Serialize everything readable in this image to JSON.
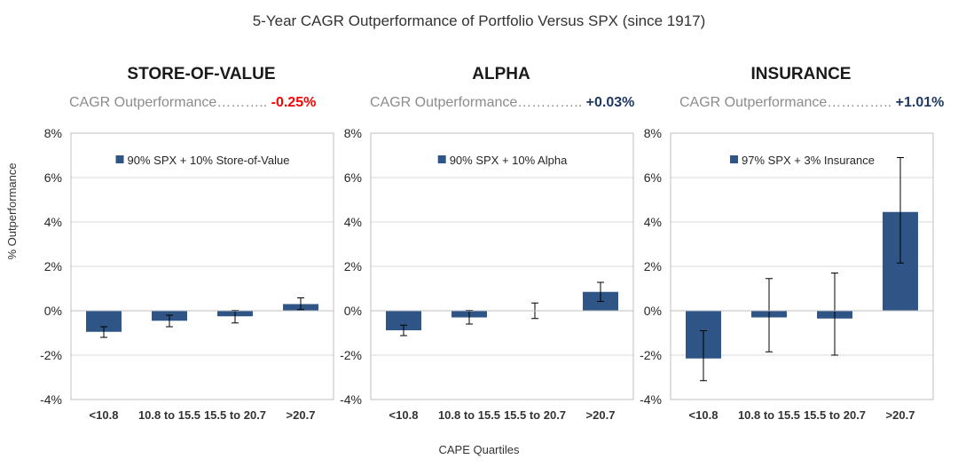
{
  "main_title": "5-Year CAGR Outperformance of Portfolio Versus SPX (since 1917)",
  "y_axis_label": "% Outperformance",
  "x_axis_label": "CAPE Quartiles",
  "colors": {
    "bar": "#2e5585",
    "negative": "#ff0000",
    "positive": "#1f3864",
    "grid": "#d9d9d9",
    "muted": "#8c8c8c"
  },
  "chart_data": [
    {
      "type": "bar",
      "title": "STORE-OF-VALUE",
      "cagr_label": "CAGR Outperformance………..",
      "cagr_value": "-0.25%",
      "cagr_sign": "negative",
      "legend": "90% SPX + 10% Store-of-Value",
      "categories": [
        "<10.8",
        "10.8 to 15.5",
        "15.5 to 20.7",
        ">20.7"
      ],
      "values": [
        -0.95,
        -0.45,
        -0.25,
        0.3
      ],
      "error_low": [
        -1.2,
        -0.72,
        -0.55,
        0.05
      ],
      "error_high": [
        -0.72,
        -0.2,
        0.02,
        0.58
      ],
      "ylim": [
        -4,
        8
      ],
      "yticks": [
        "-4%",
        "-2%",
        "0%",
        "2%",
        "4%",
        "6%",
        "8%"
      ]
    },
    {
      "type": "bar",
      "title": "ALPHA",
      "cagr_label": "CAGR Outperformance…………..",
      "cagr_value": "+0.03%",
      "cagr_sign": "positive",
      "legend": "90% SPX + 10% Alpha",
      "categories": [
        "<10.8",
        "10.8 to 15.5",
        "15.5 to 20.7",
        ">20.7"
      ],
      "values": [
        -0.88,
        -0.3,
        0.0,
        0.85
      ],
      "error_low": [
        -1.12,
        -0.6,
        -0.35,
        0.42
      ],
      "error_high": [
        -0.65,
        0.02,
        0.35,
        1.28
      ],
      "ylim": [
        -4,
        8
      ],
      "yticks": [
        "-4%",
        "-2%",
        "0%",
        "2%",
        "4%",
        "6%",
        "8%"
      ]
    },
    {
      "type": "bar",
      "title": "INSURANCE",
      "cagr_label": "CAGR Outperformance…………..",
      "cagr_value": "+1.01%",
      "cagr_sign": "positive",
      "legend": "97% SPX + 3% Insurance",
      "categories": [
        "<10.8",
        "10.8 to 15.5",
        "15.5 to 20.7",
        ">20.7"
      ],
      "values": [
        -2.15,
        -0.3,
        -0.35,
        4.45
      ],
      "error_low": [
        -3.15,
        -1.85,
        -2.0,
        2.15
      ],
      "error_high": [
        -0.9,
        1.45,
        1.7,
        6.9
      ],
      "ylim": [
        -4,
        8
      ],
      "yticks": [
        "-4%",
        "-2%",
        "0%",
        "2%",
        "4%",
        "6%",
        "8%"
      ]
    }
  ]
}
